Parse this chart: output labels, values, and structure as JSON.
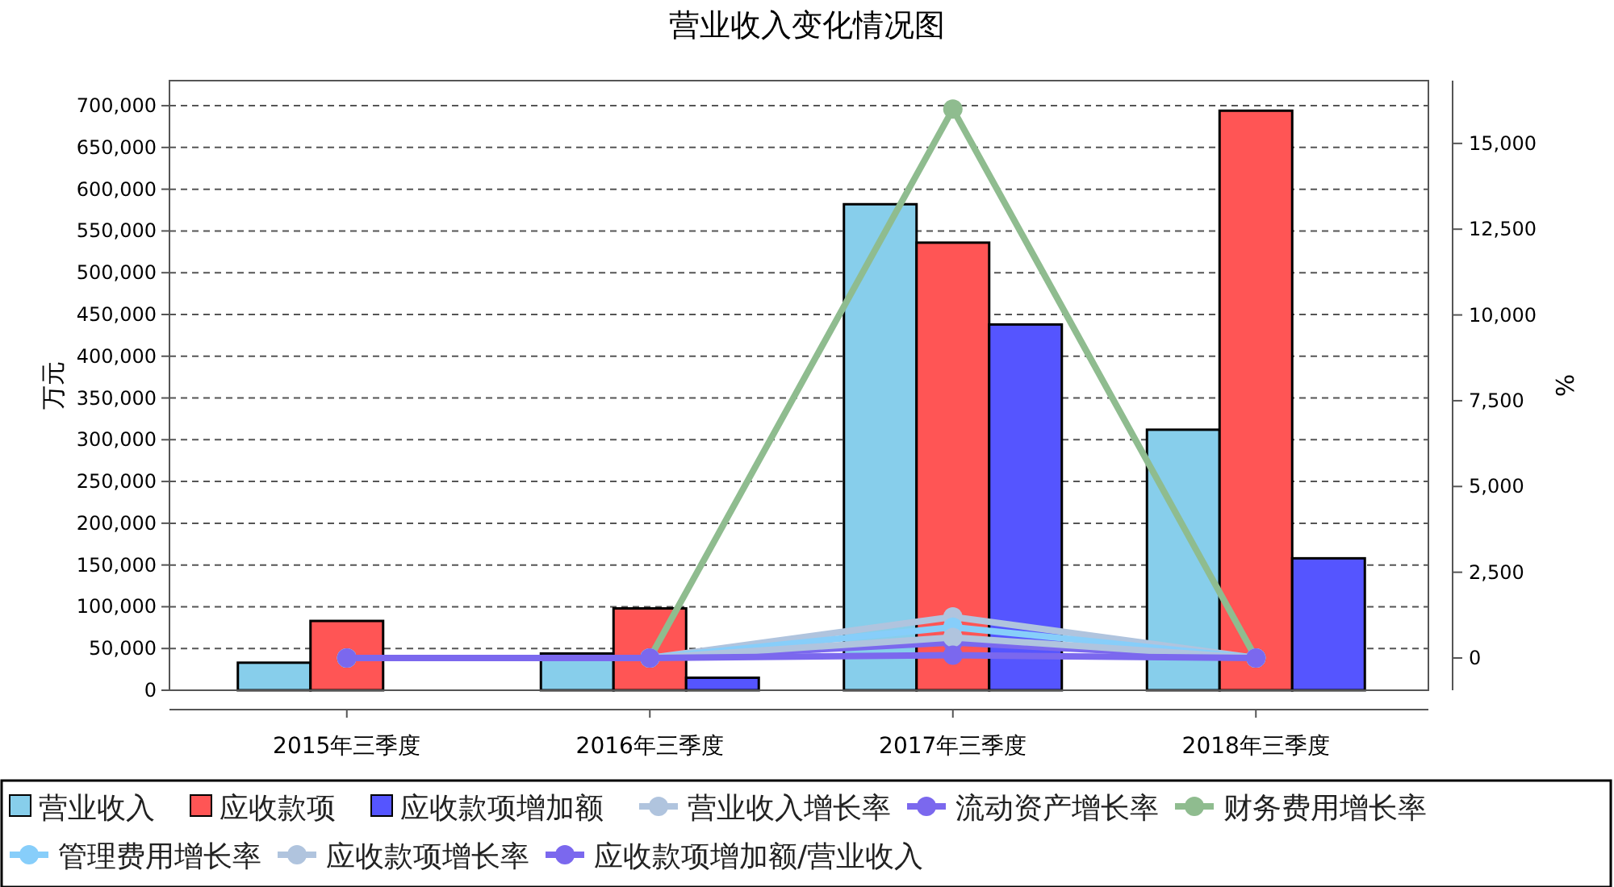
{
  "chart_data": {
    "type": "bar",
    "title": "营业收入变化情况图",
    "ylabel": "万元",
    "y2label": "%",
    "categories": [
      "2015年三季度",
      "2016年三季度",
      "2017年三季度",
      "2018年三季度"
    ],
    "series": [
      {
        "name": "营业收入",
        "color": "#87ceeb",
        "values": [
          33000,
          44000,
          582000,
          312000
        ]
      },
      {
        "name": "应收款项",
        "color": "#ff5555",
        "values": [
          83000,
          98000,
          536000,
          694000
        ]
      },
      {
        "name": "应收款项增加额",
        "color": "#5555ff",
        "values": [
          0,
          15000,
          438000,
          158000
        ]
      },
      {
        "name": "营业收入增长率",
        "type": "line",
        "axis": "y2",
        "color": "#b0c4de",
        "values": [
          0,
          0,
          1200,
          0
        ]
      },
      {
        "name": "流动资产增长率",
        "type": "line",
        "axis": "y2",
        "color": "#7b68ee",
        "values": [
          0,
          0,
          450,
          0
        ]
      },
      {
        "name": "财务费用增长率",
        "type": "line",
        "axis": "y2",
        "color": "#8fbc8f",
        "values": [
          0,
          0,
          16000,
          0
        ]
      },
      {
        "name": "管理费用增长率",
        "type": "line",
        "axis": "y2",
        "color": "#87cefa",
        "values": [
          0,
          0,
          900,
          0
        ]
      },
      {
        "name": "应收款项增长率",
        "type": "line",
        "axis": "y2",
        "color": "#b0c4de",
        "values": [
          0,
          0,
          600,
          0
        ]
      },
      {
        "name": "应收款项增加额/营业收入",
        "type": "line",
        "axis": "y2",
        "color": "#7b68ee",
        "values": [
          0,
          0,
          80,
          0
        ]
      }
    ],
    "ylim": [
      0,
      730000
    ],
    "yticks": [
      {
        "value": 0,
        "label": "0"
      },
      {
        "value": 50000,
        "label": "50,000"
      },
      {
        "value": 100000,
        "label": "100,000"
      },
      {
        "value": 150000,
        "label": "150,000"
      },
      {
        "value": 200000,
        "label": "200,000"
      },
      {
        "value": 250000,
        "label": "250,000"
      },
      {
        "value": 300000,
        "label": "300,000"
      },
      {
        "value": 350000,
        "label": "350,000"
      },
      {
        "value": 400000,
        "label": "400,000"
      },
      {
        "value": 450000,
        "label": "450,000"
      },
      {
        "value": 500000,
        "label": "500,000"
      },
      {
        "value": 550000,
        "label": "550,000"
      },
      {
        "value": 600000,
        "label": "600,000"
      },
      {
        "value": 650000,
        "label": "650,000"
      },
      {
        "value": 700000,
        "label": "700,000"
      }
    ],
    "y2lim": [
      -940,
      16830
    ],
    "y2ticks": [
      0,
      {
        "value": 2500,
        "label": "2,500"
      },
      {
        "value": 5000,
        "label": "5,000"
      },
      {
        "value": 7500,
        "label": "7,500"
      },
      {
        "value": 10000,
        "label": "10,000"
      },
      {
        "value": 12500,
        "label": "12,500"
      },
      {
        "value": 15000,
        "label": "15,000"
      }
    ],
    "grid": "y",
    "legend": "bottom",
    "marker": "circle",
    "line_style": "solid"
  }
}
